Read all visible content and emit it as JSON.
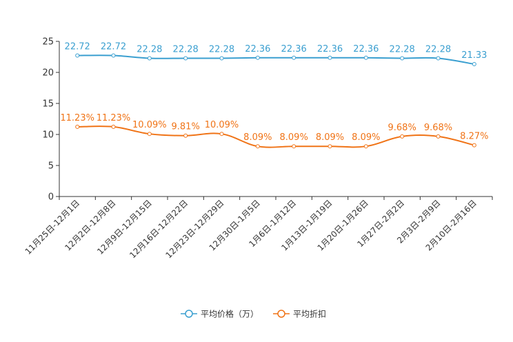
{
  "chart_data": {
    "type": "line",
    "title": "",
    "xlabel": "",
    "ylabel": "",
    "ylim": [
      0,
      25
    ],
    "yticks": [
      0,
      5,
      10,
      15,
      20,
      25
    ],
    "grid": false,
    "legend_position": "bottom-center",
    "categories": [
      "11月25日-12月1日",
      "12月2日-12月8日",
      "12月9日-12月15日",
      "12月16日-12月22日",
      "12月23日-12月29日",
      "12月30日-1月5日",
      "1月6日-1月12日",
      "1月13日-1月19日",
      "1月20日-1月26日",
      "1月27日-2月2日",
      "2月3日-2月9日",
      "2月10日-2月16日"
    ],
    "series": [
      {
        "name": "平均价格（万）",
        "color": "#3a9fd0",
        "values": [
          22.72,
          22.72,
          22.28,
          22.28,
          22.28,
          22.36,
          22.36,
          22.36,
          22.36,
          22.28,
          22.28,
          21.33
        ],
        "labels": [
          "22.72",
          "22.72",
          "22.28",
          "22.28",
          "22.28",
          "22.36",
          "22.36",
          "22.36",
          "22.36",
          "22.28",
          "22.28",
          "21.33"
        ]
      },
      {
        "name": "平均折扣",
        "color": "#f07316",
        "values": [
          11.23,
          11.23,
          10.09,
          9.81,
          10.09,
          8.09,
          8.09,
          8.09,
          8.09,
          9.68,
          9.68,
          8.27
        ],
        "labels": [
          "11.23%",
          "11.23%",
          "10.09%",
          "9.81%",
          "10.09%",
          "8.09%",
          "8.09%",
          "8.09%",
          "8.09%",
          "9.68%",
          "9.68%",
          "8.27%"
        ]
      }
    ]
  }
}
